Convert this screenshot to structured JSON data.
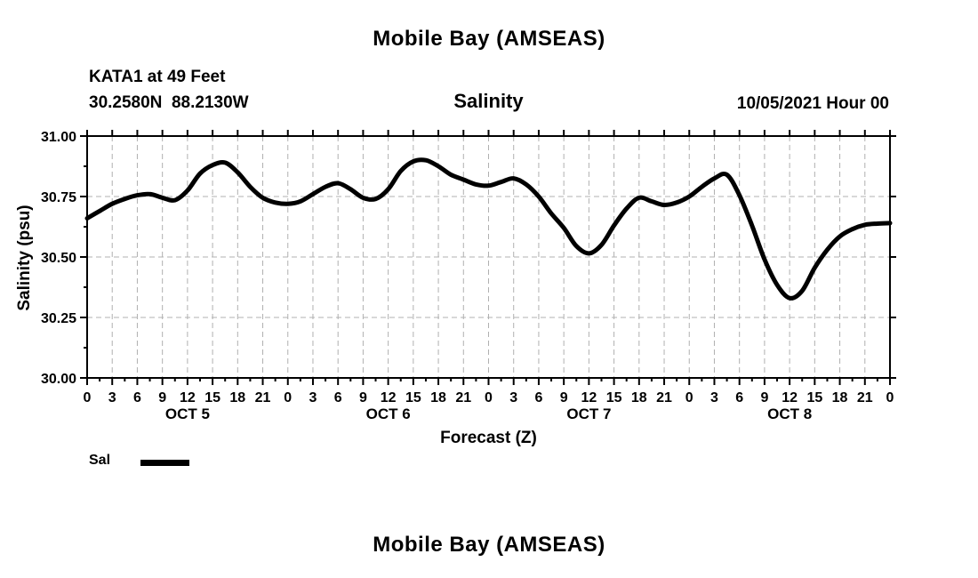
{
  "titles": {
    "top": "Mobile Bay (AMSEAS)",
    "bottom": "Mobile Bay (AMSEAS)"
  },
  "header": {
    "station": "KATA1 at 49 Feet",
    "coordinates": "30.2580N  88.2130W",
    "plot_title": "Salinity",
    "run_date": "10/05/2021 Hour 00"
  },
  "legend": {
    "label": "Sal"
  },
  "chart_data": {
    "type": "line",
    "title": "Salinity",
    "xlabel": "Forecast (Z)",
    "ylabel": "Salinity (psu)",
    "ylim": [
      30.0,
      31.0
    ],
    "xlim_hours": [
      0,
      96
    ],
    "y_major_ticks": [
      30.0,
      30.25,
      30.5,
      30.75,
      31.0
    ],
    "y_tick_labels": [
      "30.00",
      "30.25",
      "30.50",
      "30.75",
      "31.00"
    ],
    "y_minor_step": 0.125,
    "x_major_step_hours": 3,
    "x_minor_step_hours": 1.5,
    "x_major_hours": [
      0,
      3,
      6,
      9,
      12,
      15,
      18,
      21,
      24,
      27,
      30,
      33,
      36,
      39,
      42,
      45,
      48,
      51,
      54,
      57,
      60,
      63,
      66,
      69,
      72,
      75,
      78,
      81,
      84,
      87,
      90,
      93,
      96
    ],
    "x_tick_labels": [
      "0",
      "3",
      "6",
      "9",
      "12",
      "15",
      "18",
      "21",
      "0",
      "3",
      "6",
      "9",
      "12",
      "15",
      "18",
      "21",
      "0",
      "3",
      "6",
      "9",
      "12",
      "15",
      "18",
      "21",
      "0",
      "3",
      "6",
      "9",
      "12",
      "15",
      "18",
      "21",
      "0"
    ],
    "day_labels": [
      {
        "label": "OCT 5",
        "hour": 12
      },
      {
        "label": "OCT 6",
        "hour": 36
      },
      {
        "label": "OCT 7",
        "hour": 60
      },
      {
        "label": "OCT 8",
        "hour": 84
      }
    ],
    "grid": {
      "vertical_every_hours": 3,
      "horizontal_at": [
        30.25,
        30.5,
        30.75
      ],
      "color": "#b0b0b0",
      "dash": "6 4",
      "on": true
    },
    "legend_position": "bottom-left",
    "series": [
      {
        "name": "Sal",
        "color": "#000000",
        "width": 5,
        "x": [
          0,
          1.5,
          3,
          4.5,
          6,
          7.5,
          9,
          10.5,
          12,
          13.5,
          15,
          16.5,
          18,
          19.5,
          21,
          22.5,
          24,
          25.5,
          27,
          28.5,
          30,
          31.5,
          33,
          34.5,
          36,
          37.5,
          39,
          40.5,
          42,
          43.5,
          45,
          46.5,
          48,
          49.5,
          51,
          52.5,
          54,
          55.5,
          57,
          58.5,
          60,
          61.5,
          63,
          64.5,
          66,
          67.5,
          69,
          70.5,
          72,
          73.5,
          75,
          76.5,
          78,
          79.5,
          81,
          82.5,
          84,
          85.5,
          87,
          88.5,
          90,
          91.5,
          93,
          94.5,
          96
        ],
        "y": [
          30.66,
          30.69,
          30.72,
          30.74,
          30.755,
          30.76,
          30.745,
          30.735,
          30.775,
          30.845,
          30.88,
          30.89,
          30.85,
          30.79,
          30.745,
          30.725,
          30.72,
          30.73,
          30.76,
          30.79,
          30.805,
          30.78,
          30.745,
          30.74,
          30.78,
          30.855,
          30.895,
          30.9,
          30.875,
          30.84,
          30.82,
          30.8,
          30.795,
          30.81,
          30.825,
          30.8,
          30.75,
          30.68,
          30.62,
          30.545,
          30.515,
          30.55,
          30.63,
          30.7,
          30.745,
          30.73,
          30.715,
          30.725,
          30.75,
          30.79,
          30.825,
          30.84,
          30.755,
          30.63,
          30.49,
          30.385,
          30.33,
          30.36,
          30.455,
          30.53,
          30.585,
          30.615,
          30.633,
          30.638,
          30.64
        ]
      }
    ]
  }
}
